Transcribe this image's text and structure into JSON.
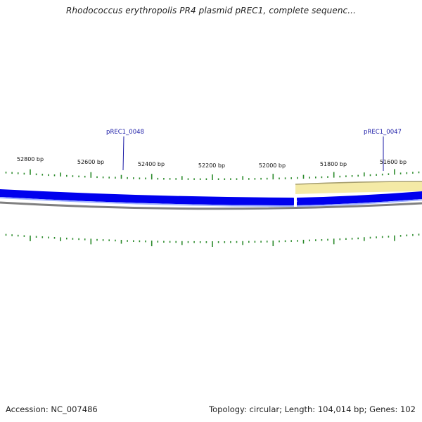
{
  "map": {
    "title": "Rhodococcus erythropolis PR4 plasmid pREC1, complete sequenc...",
    "accession_text": "Accession: NC_007486",
    "stats_text": "Topology: circular; Length: 104,014 bp; Genes: 102"
  },
  "position_labels": [
    "52800 bp",
    "52600 bp",
    "52400 bp",
    "52200 bp",
    "52000 bp",
    "51800 bp",
    "51600 bp"
  ],
  "gene_labels": [
    "pREC1_0048",
    "pREC1_0047"
  ],
  "colors": {
    "forward_strand": "#0000ee",
    "forward_strand_light": "#9fb0ff",
    "backbone": "#808080",
    "highlight_region": "#f4eaa6",
    "highlight_edge": "#a8a070",
    "tick": "#2a8a2a",
    "gene_label": "#1a1aa6"
  }
}
